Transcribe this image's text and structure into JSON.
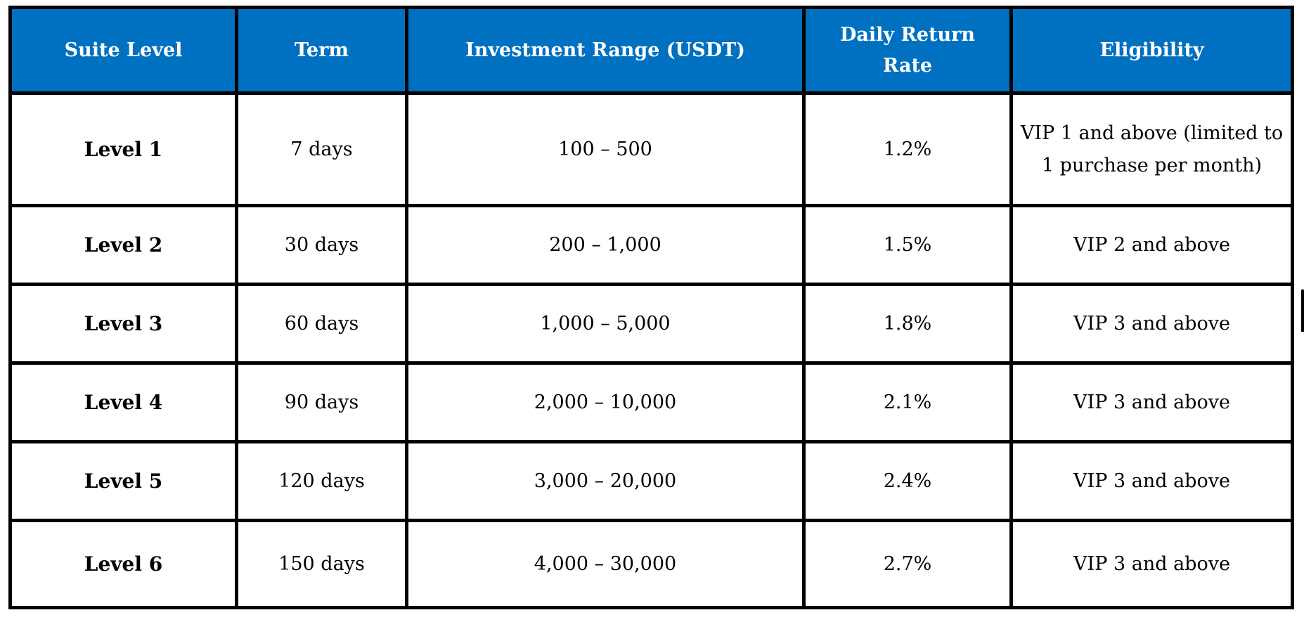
{
  "table": {
    "header_bg": "#0070c0",
    "header_text_color": "#ffffff",
    "headers": [
      "Suite Level",
      "Term",
      "Investment Range (USDT)",
      "Daily Return Rate",
      "Eligibility"
    ],
    "rows": [
      {
        "level": "Level 1",
        "term": "7 days",
        "range": "100 – 500",
        "rate": "1.2%",
        "eligibility": "VIP 1 and above (limited to 1 purchase per month)"
      },
      {
        "level": "Level 2",
        "term": "30 days",
        "range": "200 – 1,000",
        "rate": "1.5%",
        "eligibility": "VIP 2 and above"
      },
      {
        "level": "Level 3",
        "term": "60 days",
        "range": "1,000 – 5,000",
        "rate": "1.8%",
        "eligibility": "VIP 3 and above"
      },
      {
        "level": "Level 4",
        "term": "90 days",
        "range": "2,000 – 10,000",
        "rate": "2.1%",
        "eligibility": "VIP 3 and above"
      },
      {
        "level": "Level 5",
        "term": "120 days",
        "range": "3,000 – 20,000",
        "rate": "2.4%",
        "eligibility": "VIP 3 and above"
      },
      {
        "level": "Level 6",
        "term": "150 days",
        "range": "4,000 – 30,000",
        "rate": "2.7%",
        "eligibility": "VIP 3 and above"
      }
    ]
  }
}
